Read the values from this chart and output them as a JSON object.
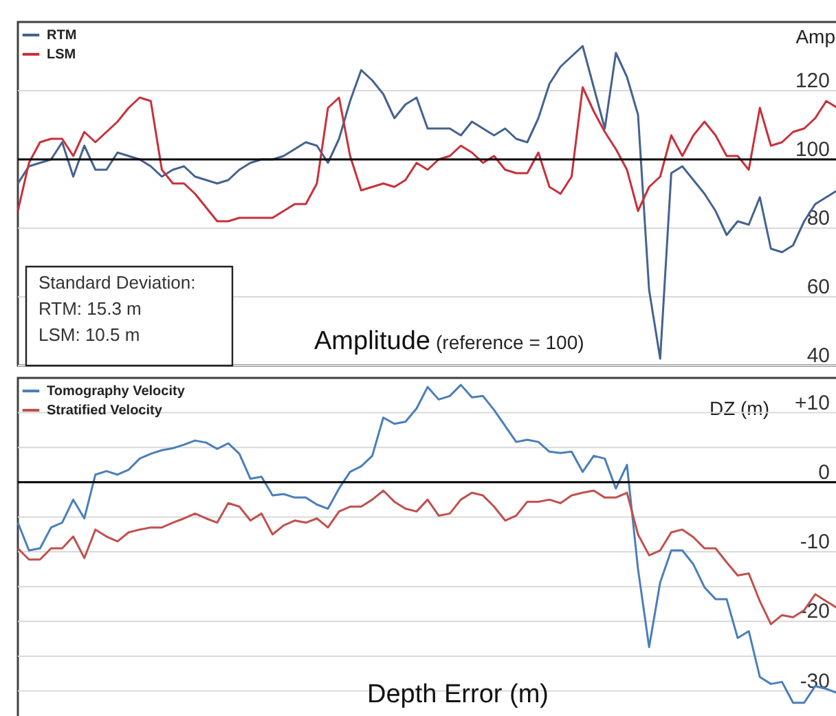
{
  "chart_data": [
    {
      "type": "line",
      "title": "Amplitude",
      "subtitle": "(reference = 100)",
      "ylabel": "Amp",
      "categories": [
        null,
        null,
        null,
        null,
        null,
        null,
        null,
        null,
        null,
        null,
        null,
        null,
        null,
        null,
        null,
        null,
        null,
        null,
        null,
        null,
        null,
        null,
        null,
        null,
        null,
        null,
        null,
        null,
        null,
        null,
        null,
        null,
        null,
        null,
        null,
        null,
        null,
        null,
        null,
        null,
        null,
        null,
        null,
        null,
        null,
        null,
        null,
        null,
        null,
        null,
        null,
        null,
        null,
        null,
        null,
        null,
        null,
        null,
        null,
        null,
        null,
        null,
        null,
        null,
        null,
        null,
        null,
        null,
        null,
        null,
        null,
        null,
        null,
        null,
        null
      ],
      "series": [
        {
          "name": "RTM",
          "color": "#44628f",
          "values": [
            93,
            98,
            99,
            100,
            105,
            95,
            104,
            97,
            97,
            102,
            101,
            100,
            98,
            95,
            97,
            98,
            95,
            94,
            93,
            94,
            97,
            99,
            100,
            100,
            101,
            103,
            105,
            104,
            99,
            106,
            117,
            126,
            123,
            119,
            112,
            116,
            118,
            109,
            109,
            109,
            107,
            111,
            109,
            107,
            109,
            106,
            105,
            112,
            122,
            127,
            130,
            133,
            121,
            109,
            131,
            124,
            113,
            62,
            42,
            96,
            98,
            94,
            90,
            85,
            78,
            82,
            81,
            89,
            74,
            73,
            75,
            82,
            87,
            89,
            91
          ]
        },
        {
          "name": "LSM",
          "color": "#c8303a",
          "values": [
            85,
            99,
            105,
            106,
            106,
            101,
            108,
            105,
            108,
            111,
            115,
            118,
            117,
            97,
            93,
            93,
            90,
            86,
            82,
            82,
            83,
            83,
            83,
            83,
            85,
            87,
            87,
            93,
            115,
            118,
            101,
            91,
            92,
            93,
            92,
            94,
            99,
            97,
            100,
            101,
            104,
            102,
            99,
            101,
            97,
            96,
            96,
            102,
            92,
            90,
            95,
            121,
            114,
            108,
            103,
            97,
            85,
            92,
            95,
            107,
            101,
            107,
            111,
            107,
            101,
            101,
            97,
            115,
            104,
            105,
            108,
            109,
            112,
            117,
            115
          ]
        }
      ],
      "ylim": [
        40,
        140
      ],
      "yticks": [
        40,
        60,
        80,
        100,
        120
      ],
      "grid": "y",
      "legend": "top left",
      "ref_lines": [
        {
          "axis": "y",
          "value": 100,
          "color": "#000000"
        }
      ],
      "annotations": [
        "Standard Deviation:\nRTM: 15.3 m\nLSM: 10.5 m"
      ]
    },
    {
      "type": "line",
      "title": "Depth Error (m)",
      "ylabel": "DZ (m)",
      "categories": [
        null,
        null,
        null,
        null,
        null,
        null,
        null,
        null,
        null,
        null,
        null,
        null,
        null,
        null,
        null,
        null,
        null,
        null,
        null,
        null,
        null,
        null,
        null,
        null,
        null,
        null,
        null,
        null,
        null,
        null,
        null,
        null,
        null,
        null,
        null,
        null,
        null,
        null,
        null,
        null,
        null,
        null,
        null,
        null,
        null,
        null,
        null,
        null,
        null,
        null,
        null,
        null,
        null,
        null,
        null,
        null,
        null,
        null,
        null,
        null,
        null,
        null,
        null,
        null,
        null,
        null,
        null,
        null,
        null,
        null,
        null,
        null,
        null,
        null,
        null
      ],
      "series": [
        {
          "name": "Tomography Velocity",
          "color": "#4a7ebb",
          "values": [
            -5.8,
            -9.8,
            -9.5,
            -6.5,
            -5.8,
            -2.5,
            -5.2,
            1.1,
            1.6,
            1.1,
            1.8,
            3.4,
            4.1,
            4.6,
            4.9,
            5.4,
            6.0,
            5.7,
            4.8,
            5.6,
            4.1,
            0.5,
            0.8,
            -1.9,
            -1.7,
            -2.2,
            -2.2,
            -3.2,
            -3.8,
            -0.9,
            1.5,
            2.3,
            3.8,
            9.3,
            8.4,
            8.7,
            10.6,
            13.7,
            11.9,
            12.4,
            14.0,
            12.2,
            12.4,
            10.4,
            8.1,
            5.8,
            6.1,
            5.8,
            4.4,
            4.2,
            4.4,
            1.5,
            3.8,
            3.4,
            -0.9,
            2.5,
            -12.5,
            -23.7,
            -14.4,
            -9.8,
            -9.8,
            -11.8,
            -15.1,
            -16.8,
            -16.8,
            -22.4,
            -21.4,
            -28.0,
            -29.0,
            -28.7,
            -31.7,
            -31.7,
            -29.3,
            -29.7,
            -30.3
          ]
        },
        {
          "name": "Stratified Velocity",
          "color": "#c0504d",
          "values": [
            -9.5,
            -11.1,
            -11.1,
            -9.5,
            -9.5,
            -7.8,
            -10.9,
            -6.8,
            -7.8,
            -8.5,
            -7.2,
            -6.8,
            -6.5,
            -6.5,
            -5.8,
            -5.2,
            -4.5,
            -5.2,
            -5.8,
            -3.0,
            -3.5,
            -5.5,
            -4.5,
            -7.5,
            -6.2,
            -5.5,
            -5.8,
            -5.2,
            -6.5,
            -4.2,
            -3.5,
            -3.5,
            -2.5,
            -1.2,
            -2.8,
            -3.8,
            -4.2,
            -2.5,
            -4.8,
            -4.5,
            -2.5,
            -1.5,
            -1.9,
            -3.5,
            -5.5,
            -4.8,
            -2.8,
            -2.8,
            -2.5,
            -3.0,
            -1.9,
            -1.5,
            -1.2,
            -2.2,
            -2.2,
            -1.5,
            -7.5,
            -10.5,
            -9.8,
            -7.2,
            -6.8,
            -7.9,
            -9.5,
            -9.5,
            -11.5,
            -13.4,
            -13.1,
            -17.1,
            -20.4,
            -19.1,
            -19.4,
            -18.4,
            -16.1,
            -17.1,
            -18.1
          ]
        }
      ],
      "ylim": [
        -34,
        15
      ],
      "yticks": [
        -30,
        {
          "value": -25,
          "label": null
        },
        -20,
        {
          "value": -15,
          "label": null
        },
        -10,
        {
          "value": -5,
          "label": null
        },
        0,
        {
          "value": 5,
          "label": null
        },
        {
          "value": 10,
          "label": "+10"
        }
      ],
      "grid": "y",
      "legend": "top left",
      "ref_lines": [
        {
          "axis": "y",
          "value": 0,
          "color": "#000000"
        }
      ]
    }
  ]
}
